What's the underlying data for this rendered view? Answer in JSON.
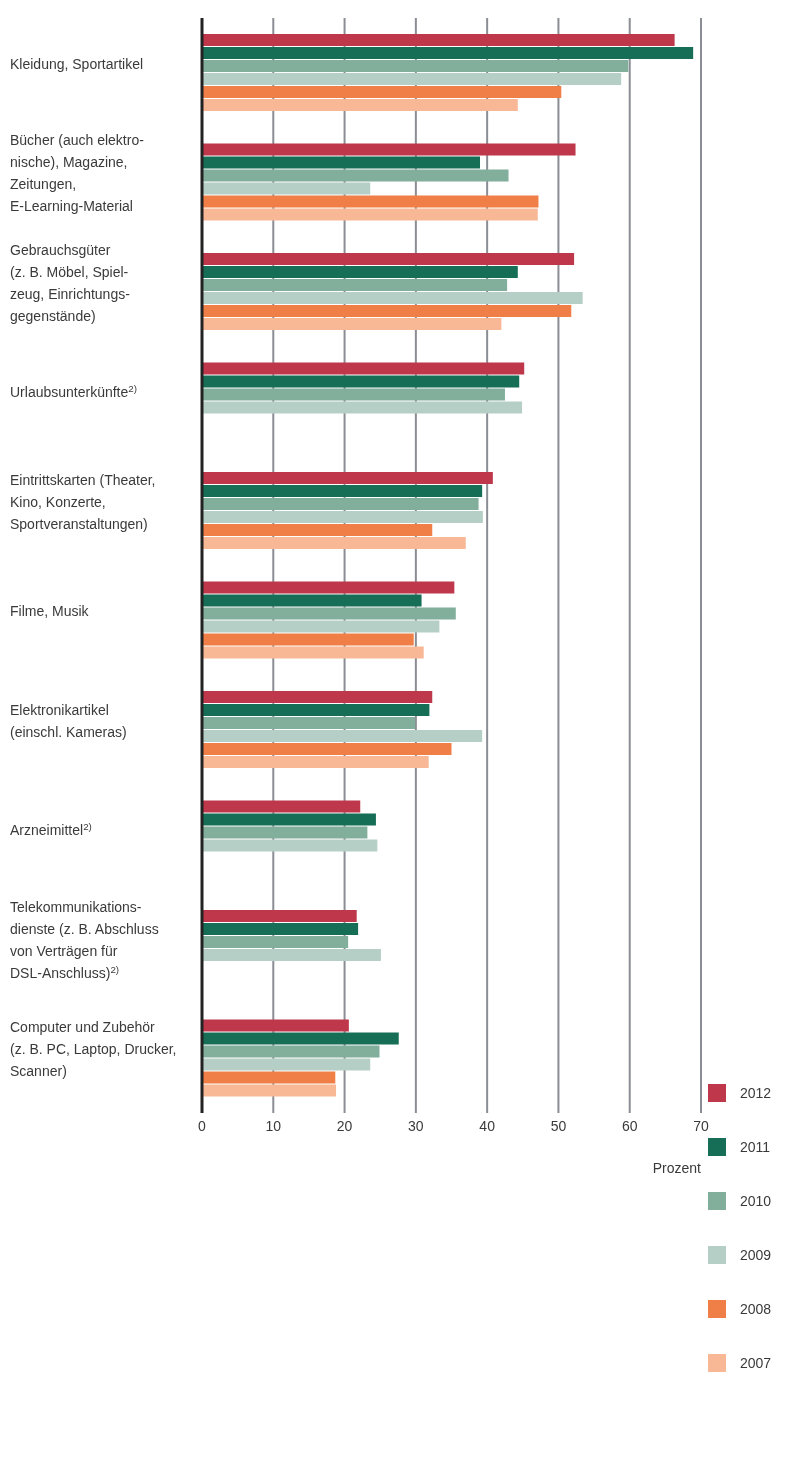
{
  "chart_data": {
    "type": "bar",
    "orientation": "horizontal",
    "categories": [
      "Kleidung, Sportartikel",
      "Bücher (auch elektro-\nnische), Magazine,\nZeitungen,\nE-Learning-Material",
      "Gebrauchsgüter\n(z. B. Möbel, Spiel-\nzeug, Einrichtungs-\ngegenstände)",
      "Urlaubsunterkünfte$^{2)}$",
      "Eintrittskarten (Theater,\nKino, Konzerte,\nSportveranstaltungen)",
      "Filme, Musik",
      "Elektronikartikel\n(einschl. Kameras)",
      "Arzneimittel$^{2)}$",
      "Telekommunikations-\ndienste (z. B. Abschluss\nvon Verträgen für\nDSL-Anschluss)$^{2)}$",
      "Computer und Zubehör\n(z. B. PC, Laptop, Drucker,\nScanner)"
    ],
    "series": [
      {
        "name": "2012",
        "color": "#be374b",
        "values": [
          66.3,
          52.4,
          52.2,
          45.2,
          40.8,
          35.4,
          32.3,
          22.2,
          21.7,
          20.6
        ]
      },
      {
        "name": "2011",
        "color": "#166e56",
        "values": [
          68.9,
          39.0,
          44.3,
          44.5,
          39.3,
          30.8,
          31.9,
          24.4,
          21.9,
          27.6
        ]
      },
      {
        "name": "2010",
        "color": "#82ae9c",
        "values": [
          59.8,
          43.0,
          42.8,
          42.5,
          38.8,
          35.6,
          29.9,
          23.2,
          20.5,
          24.9
        ]
      },
      {
        "name": "2009",
        "color": "#b5cfc6",
        "values": [
          58.8,
          23.6,
          53.4,
          44.9,
          39.4,
          33.3,
          39.3,
          24.6,
          25.1,
          23.6
        ]
      },
      {
        "name": "2008",
        "color": "#f07e47",
        "values": [
          50.4,
          47.2,
          51.8,
          null,
          32.3,
          29.7,
          35.0,
          null,
          null,
          18.7
        ]
      },
      {
        "name": "2007",
        "color": "#f8b795",
        "values": [
          44.3,
          47.1,
          42.0,
          null,
          37.0,
          31.1,
          31.8,
          null,
          null,
          18.8
        ]
      }
    ],
    "xlim": [
      0,
      70
    ],
    "xticks": [
      0,
      10,
      20,
      30,
      40,
      50,
      60,
      70
    ],
    "xlabel": "Prozent",
    "grid": "x",
    "legend": "bottom right"
  }
}
